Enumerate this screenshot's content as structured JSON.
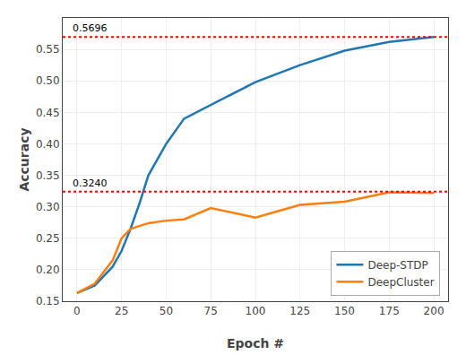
{
  "chart_data": {
    "type": "line",
    "xlabel": "Epoch #",
    "ylabel": "Accuracy",
    "x": [
      0,
      10,
      20,
      25,
      30,
      35,
      40,
      50,
      60,
      75,
      100,
      125,
      150,
      175,
      200
    ],
    "series": [
      {
        "name": "Deep-STDP",
        "color": "#1f77b4",
        "values": [
          0.163,
          0.175,
          0.205,
          0.23,
          0.265,
          0.305,
          0.35,
          0.4,
          0.44,
          0.462,
          0.498,
          0.525,
          0.548,
          0.562,
          0.5696
        ]
      },
      {
        "name": "DeepCluster",
        "color": "#ff7f0e",
        "values": [
          0.163,
          0.178,
          0.215,
          0.25,
          0.265,
          0.27,
          0.274,
          0.278,
          0.28,
          0.298,
          0.283,
          0.303,
          0.308,
          0.323,
          0.322
        ]
      }
    ],
    "hlines": [
      {
        "y": 0.5696,
        "label": "0.5696",
        "color": "red",
        "line_style": "dotted"
      },
      {
        "y": 0.324,
        "label": "0.3240",
        "color": "red",
        "line_style": "dotted"
      }
    ],
    "xlim": [
      -8,
      208
    ],
    "ylim": [
      0.15,
      0.6
    ],
    "xticks": [
      0,
      25,
      50,
      75,
      100,
      125,
      150,
      175,
      200
    ],
    "yticks": [
      0.15,
      {
        "value": 0.2,
        "label": "0.20"
      },
      0.25,
      {
        "value": 0.3,
        "label": "0.30"
      },
      0.35,
      {
        "value": 0.4,
        "label": "0.40"
      },
      0.45,
      {
        "value": 0.5,
        "label": "0.50"
      },
      0.55
    ],
    "grid": true,
    "legend": "lower right"
  }
}
